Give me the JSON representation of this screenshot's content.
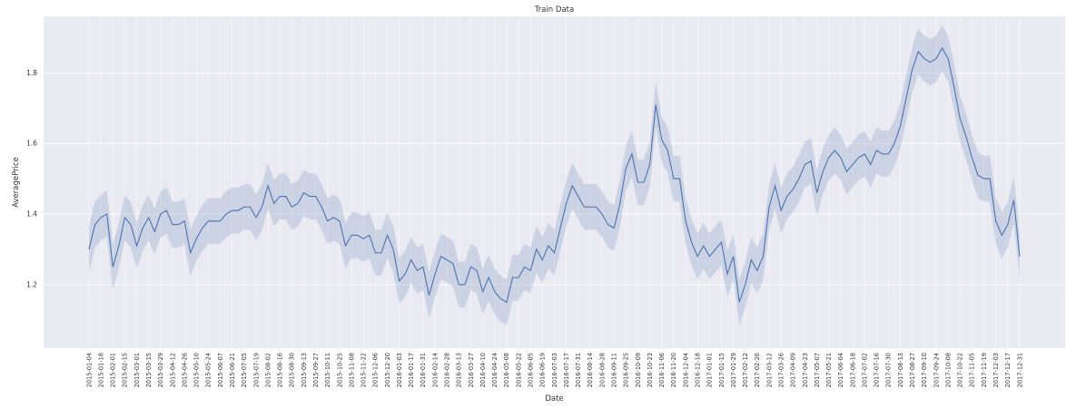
{
  "chart_data": {
    "type": "line",
    "title": "Train Data",
    "xlabel": "Date",
    "ylabel": "AveragePrice",
    "ylim": [
      1.02,
      1.96
    ],
    "yticks": [
      "1.2",
      "1.4",
      "1.6",
      "1.8"
    ],
    "grid": true,
    "x_start": "2015-01-04",
    "x_step_days": 7,
    "series": [
      {
        "values": [
          1.3,
          1.37,
          1.39,
          1.4,
          1.25,
          1.31,
          1.39,
          1.37,
          1.31,
          1.36,
          1.39,
          1.35,
          1.4,
          1.41,
          1.37,
          1.37,
          1.38,
          1.29,
          1.33,
          1.36,
          1.38,
          1.38,
          1.38,
          1.4,
          1.41,
          1.41,
          1.42,
          1.42,
          1.39,
          1.42,
          1.48,
          1.43,
          1.45,
          1.45,
          1.42,
          1.43,
          1.46,
          1.45,
          1.45,
          1.42,
          1.38,
          1.39,
          1.38,
          1.31,
          1.34,
          1.34,
          1.33,
          1.34,
          1.29,
          1.29,
          1.34,
          1.3,
          1.21,
          1.23,
          1.27,
          1.24,
          1.25,
          1.17,
          1.23,
          1.28,
          1.27,
          1.26,
          1.2,
          1.2,
          1.25,
          1.24,
          1.18,
          1.22,
          1.18,
          1.16,
          1.15,
          1.22,
          1.22,
          1.25,
          1.24,
          1.3,
          1.27,
          1.31,
          1.29,
          1.36,
          1.43,
          1.48,
          1.45,
          1.42,
          1.42,
          1.42,
          1.4,
          1.37,
          1.36,
          1.43,
          1.53,
          1.57,
          1.49,
          1.49,
          1.54,
          1.71,
          1.61,
          1.58,
          1.5,
          1.5,
          1.38,
          1.32,
          1.28,
          1.31,
          1.28,
          1.3,
          1.32,
          1.23,
          1.28,
          1.15,
          1.2,
          1.27,
          1.24,
          1.28,
          1.42,
          1.48,
          1.41,
          1.45,
          1.47,
          1.5,
          1.54,
          1.55,
          1.46,
          1.52,
          1.56,
          1.58,
          1.56,
          1.52,
          1.54,
          1.56,
          1.57,
          1.54,
          1.58,
          1.57,
          1.57,
          1.6,
          1.65,
          1.73,
          1.81,
          1.86,
          1.84,
          1.83,
          1.84,
          1.87,
          1.84,
          1.76,
          1.67,
          1.62,
          1.56,
          1.51,
          1.5,
          1.5,
          1.38,
          1.34,
          1.37,
          1.44,
          1.28
        ],
        "ci_halfwidth": 0.065
      }
    ],
    "colors": {
      "line": "#4c72b0",
      "band": "#4c72b0",
      "plot_bg": "#eaeaf2",
      "grid": "#ffffff"
    }
  }
}
